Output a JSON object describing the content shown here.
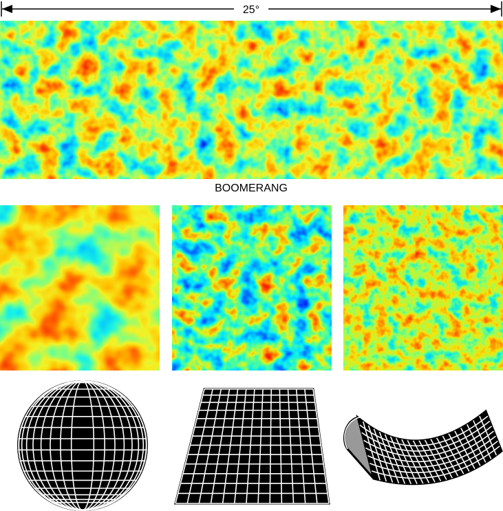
{
  "scale_label": "25°",
  "top_map_label": "BOOMERANG"
}
